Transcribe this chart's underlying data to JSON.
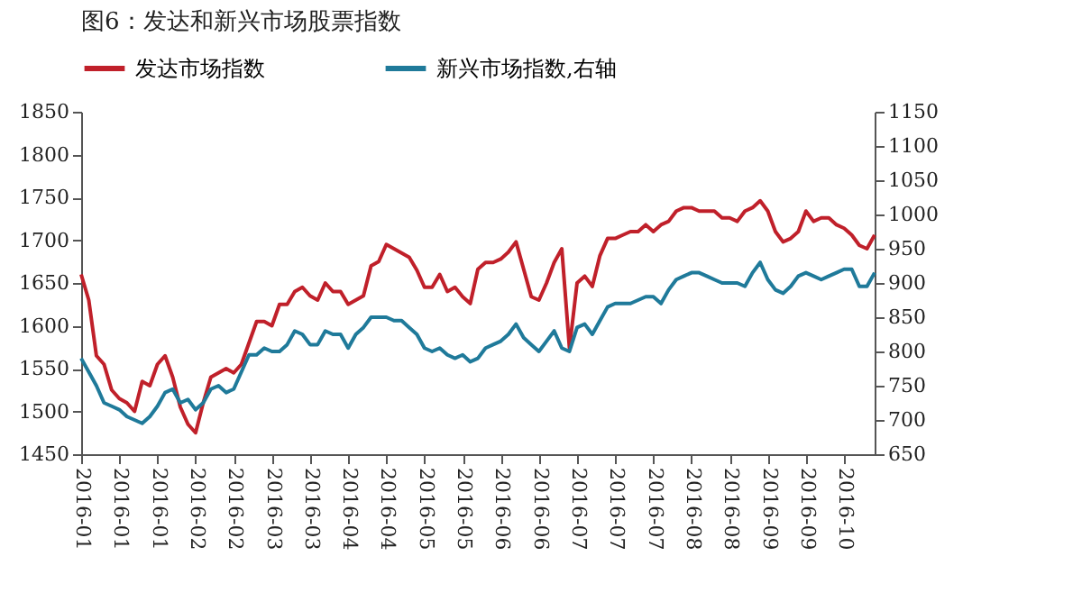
{
  "chart_data": {
    "type": "line",
    "title": "图6：发达和新兴市场股票指数",
    "categories": [
      "2016-01",
      null,
      null,
      null,
      null,
      "2016-01",
      null,
      null,
      null,
      null,
      "2016-01",
      null,
      null,
      null,
      null,
      "2016-02",
      null,
      null,
      null,
      null,
      "2016-02",
      null,
      null,
      null,
      null,
      "2016-03",
      null,
      null,
      null,
      null,
      "2016-03",
      null,
      null,
      null,
      null,
      "2016-04",
      null,
      null,
      null,
      null,
      "2016-04",
      null,
      null,
      null,
      null,
      "2016-05",
      null,
      null,
      null,
      null,
      "2016-05",
      null,
      null,
      null,
      null,
      "2016-06",
      null,
      null,
      null,
      null,
      "2016-06",
      null,
      null,
      null,
      null,
      "2016-07",
      null,
      null,
      null,
      null,
      "2016-07",
      null,
      null,
      null,
      null,
      "2016-07",
      null,
      null,
      null,
      null,
      "2016-08",
      null,
      null,
      null,
      null,
      "2016-08",
      null,
      null,
      null,
      null,
      "2016-09",
      null,
      null,
      null,
      null,
      "2016-09",
      null,
      null,
      null,
      null,
      "2016-10",
      null,
      null,
      null,
      null
    ],
    "series": [
      {
        "name": "发达市场指数",
        "color": "#c0202a",
        "values": [
          1660,
          1630,
          1565,
          1555,
          1525,
          1515,
          1510,
          1500,
          1535,
          1530,
          1555,
          1565,
          1540,
          1505,
          1485,
          1475,
          1510,
          1540,
          1545,
          1550,
          1545,
          1555,
          1580,
          1605,
          1605,
          1600,
          1625,
          1625,
          1640,
          1645,
          1635,
          1630,
          1650,
          1640,
          1640,
          1625,
          1630,
          1635,
          1670,
          1675,
          1695,
          1690,
          1685,
          1680,
          1665,
          1645,
          1645,
          1660,
          1640,
          1645,
          1634,
          1626,
          1666,
          1674,
          1674,
          1678,
          1686,
          1698,
          1666,
          1634,
          1630,
          1650,
          1674,
          1690,
          1574,
          1650,
          1658,
          1646,
          1682,
          1702,
          1702,
          1706,
          1710,
          1710,
          1718,
          1710,
          1718,
          1722,
          1734,
          1738,
          1738,
          1734,
          1734,
          1734,
          1726,
          1726,
          1722,
          1734,
          1738,
          1746,
          1734,
          1710,
          1698,
          1702,
          1710,
          1734,
          1722,
          1726,
          1726,
          1718,
          1714,
          1706,
          1694,
          1690,
          1706
        ]
      },
      {
        "name": "新兴市场指数,右轴",
        "color": "#1f7a9a",
        "axis": "y2",
        "values": [
          790,
          770,
          750,
          725,
          720,
          715,
          705,
          700,
          695,
          705,
          720,
          740,
          745,
          725,
          730,
          715,
          725,
          745,
          750,
          740,
          745,
          770,
          795,
          795,
          805,
          800,
          800,
          810,
          830,
          825,
          810,
          810,
          830,
          825,
          825,
          805,
          825,
          835,
          850,
          850,
          850,
          845,
          845,
          835,
          825,
          805,
          800,
          805,
          795,
          790,
          795,
          785,
          790,
          805,
          810,
          815,
          825,
          840,
          820,
          810,
          800,
          815,
          830,
          805,
          800,
          835,
          840,
          825,
          845,
          865,
          870,
          870,
          870,
          875,
          880,
          880,
          870,
          890,
          905,
          910,
          915,
          915,
          910,
          905,
          900,
          900,
          900,
          895,
          915,
          930,
          905,
          890,
          885,
          895,
          910,
          915,
          910,
          905,
          910,
          915,
          920,
          920,
          895,
          895,
          915
        ]
      }
    ],
    "ylim": [
      1450,
      1850
    ],
    "yticks": [
      1450,
      1500,
      1550,
      1600,
      1650,
      1700,
      1750,
      1800,
      1850
    ],
    "y2lim": [
      650,
      1150
    ],
    "y2ticks": [
      650,
      700,
      750,
      800,
      850,
      900,
      950,
      1000,
      1050,
      1100,
      1150
    ],
    "legend": "top",
    "grid": false,
    "marker": "none",
    "line_style": "solid"
  }
}
